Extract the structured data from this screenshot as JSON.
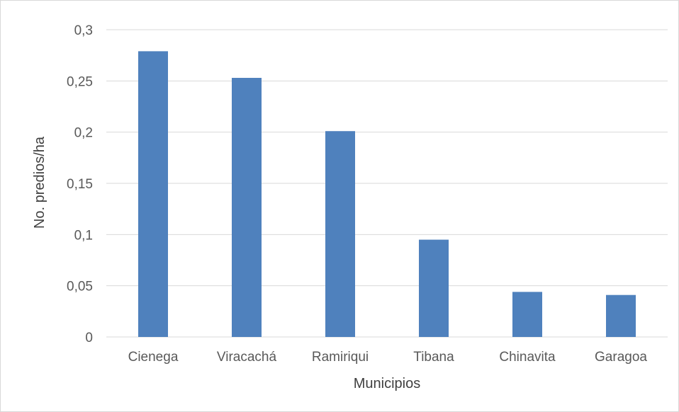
{
  "chart_data": {
    "type": "bar",
    "title": "",
    "xlabel": "Municipios",
    "ylabel": "No. predios/ha",
    "categories": [
      "Cienega",
      "Viracachá",
      "Ramiriqui",
      "Tibana",
      "Chinavita",
      "Garagoa"
    ],
    "values": [
      0.279,
      0.253,
      0.201,
      0.095,
      0.044,
      0.041
    ],
    "ylim": [
      0,
      0.3
    ],
    "yticks": [
      0,
      0.05,
      0.1,
      0.15,
      0.2,
      0.25,
      0.3
    ],
    "ytick_labels": [
      "0",
      "0,05",
      "0,1",
      "0,15",
      "0,2",
      "0,25",
      "0,3"
    ],
    "grid": true,
    "legend": "none",
    "colors": {
      "bar": "#4f81bd",
      "grid": "#d9d9d9",
      "text": "#595959"
    }
  }
}
